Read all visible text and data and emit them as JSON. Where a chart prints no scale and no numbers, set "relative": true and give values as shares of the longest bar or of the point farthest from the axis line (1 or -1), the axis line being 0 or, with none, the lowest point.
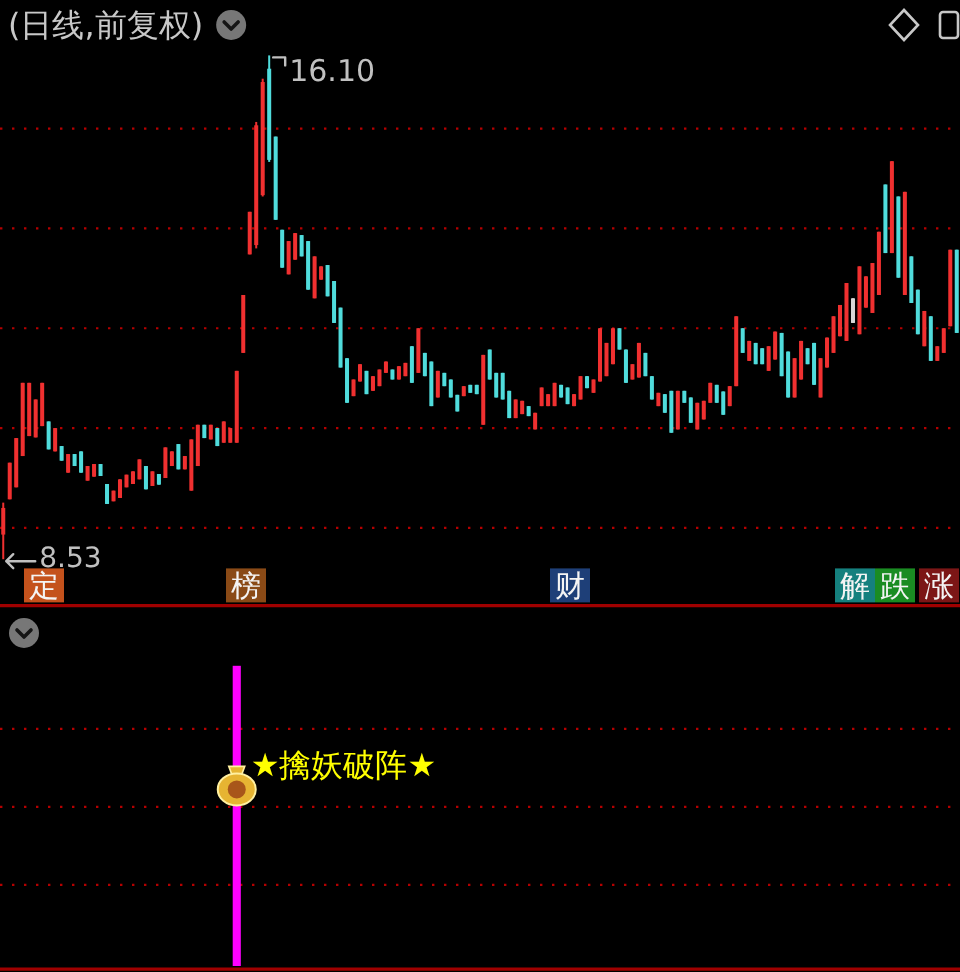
{
  "chart_data": [
    {
      "type": "candlestick",
      "title": "(日线,前复权)",
      "categories": [
        null,
        null,
        null,
        null,
        null,
        null,
        null,
        null,
        null,
        null,
        null,
        null,
        null,
        null,
        null,
        null,
        null,
        null,
        null,
        null,
        null,
        null,
        null,
        null,
        null,
        null,
        null,
        null,
        null,
        null,
        null,
        null,
        null,
        null,
        null,
        null,
        null,
        null,
        null,
        null,
        null,
        null,
        null,
        null,
        null,
        null,
        null,
        null,
        null,
        null,
        null,
        null,
        null,
        null,
        null,
        null,
        null,
        null,
        null,
        null,
        null,
        null,
        null,
        null,
        null,
        null,
        null,
        null,
        null,
        null,
        null,
        null,
        null,
        null,
        null,
        null,
        null,
        null,
        null,
        null,
        null,
        null,
        null,
        null,
        null,
        null,
        null,
        null,
        null,
        null,
        null,
        null,
        null,
        null,
        null,
        null,
        null,
        null,
        null,
        null,
        null,
        null,
        null,
        null,
        null,
        null,
        null,
        null,
        null,
        null,
        null,
        null,
        null,
        null,
        null,
        null,
        null,
        null,
        null,
        null,
        null,
        null,
        null,
        null,
        null,
        null,
        null,
        null,
        null,
        null,
        null,
        null,
        null,
        null,
        null,
        null,
        null,
        null,
        null,
        null,
        null,
        null,
        null,
        null,
        null,
        null,
        null,
        null
      ],
      "ohlc": [
        [
          8.9,
          9.38,
          8.53,
          9.3
        ],
        [
          9.43,
          9.98,
          9.43,
          9.98
        ],
        [
          9.61,
          10.35,
          9.61,
          10.35
        ],
        [
          10.08,
          11.18,
          10.08,
          11.18
        ],
        [
          10.38,
          11.18,
          10.38,
          11.18
        ],
        [
          10.36,
          10.93,
          10.36,
          10.93
        ],
        [
          10.53,
          11.18,
          10.53,
          11.18
        ],
        [
          10.6,
          10.6,
          10.18,
          10.18
        ],
        [
          10.15,
          10.5,
          10.15,
          10.5
        ],
        [
          10.23,
          10.23,
          10.01,
          10.01
        ],
        [
          9.83,
          10.11,
          9.83,
          10.11
        ],
        [
          10.11,
          10.11,
          9.93,
          9.93
        ],
        [
          10.15,
          10.15,
          9.83,
          9.83
        ],
        [
          9.71,
          9.93,
          9.71,
          9.93
        ],
        [
          9.77,
          9.96,
          9.77,
          9.96
        ],
        [
          9.96,
          9.96,
          9.78,
          9.78
        ],
        [
          9.66,
          9.66,
          9.36,
          9.36
        ],
        [
          9.4,
          9.56,
          9.4,
          9.56
        ],
        [
          9.45,
          9.73,
          9.45,
          9.73
        ],
        [
          9.61,
          9.8,
          9.61,
          9.8
        ],
        [
          9.66,
          9.85,
          9.66,
          9.85
        ],
        [
          9.73,
          10.03,
          9.73,
          10.03
        ],
        [
          9.93,
          9.93,
          9.58,
          9.58
        ],
        [
          9.63,
          9.85,
          9.63,
          9.85
        ],
        [
          9.81,
          9.81,
          9.65,
          9.65
        ],
        [
          9.75,
          10.21,
          9.75,
          10.21
        ],
        [
          9.93,
          10.15,
          9.93,
          10.15
        ],
        [
          10.26,
          10.26,
          9.88,
          9.88
        ],
        [
          9.88,
          10.08,
          9.88,
          10.08
        ],
        [
          9.56,
          10.33,
          9.56,
          10.33
        ],
        [
          9.93,
          10.55,
          9.93,
          10.55
        ],
        [
          10.55,
          10.55,
          10.35,
          10.35
        ],
        [
          10.33,
          10.55,
          10.33,
          10.55
        ],
        [
          10.5,
          10.5,
          10.23,
          10.23
        ],
        [
          10.28,
          10.6,
          10.28,
          10.6
        ],
        [
          10.28,
          10.5,
          10.28,
          10.5
        ],
        [
          10.28,
          11.36,
          10.28,
          11.36
        ],
        [
          11.63,
          12.5,
          11.63,
          12.5
        ],
        [
          13.11,
          13.75,
          13.11,
          13.75
        ],
        [
          13.25,
          15.1,
          13.2,
          15.05
        ],
        [
          14.0,
          15.75,
          13.98,
          15.7
        ],
        [
          15.9,
          16.1,
          14.5,
          14.53
        ],
        [
          14.88,
          14.88,
          13.63,
          13.63
        ],
        [
          13.48,
          13.48,
          12.91,
          12.91
        ],
        [
          12.81,
          13.31,
          12.81,
          13.31
        ],
        [
          13.03,
          13.43,
          13.03,
          13.43
        ],
        [
          13.4,
          13.4,
          13.08,
          13.08
        ],
        [
          13.31,
          13.31,
          12.58,
          12.58
        ],
        [
          12.45,
          13.08,
          12.45,
          13.08
        ],
        [
          12.73,
          12.93,
          12.73,
          12.93
        ],
        [
          12.95,
          12.95,
          12.48,
          12.48
        ],
        [
          12.71,
          12.71,
          12.08,
          12.08
        ],
        [
          12.31,
          12.31,
          11.41,
          11.41
        ],
        [
          11.55,
          11.55,
          10.88,
          10.88
        ],
        [
          10.98,
          11.23,
          10.98,
          11.23
        ],
        [
          11.2,
          11.46,
          11.2,
          11.46
        ],
        [
          11.36,
          11.36,
          11.01,
          11.01
        ],
        [
          11.06,
          11.28,
          11.06,
          11.28
        ],
        [
          11.13,
          11.38,
          11.13,
          11.38
        ],
        [
          11.33,
          11.5,
          11.33,
          11.5
        ],
        [
          11.38,
          11.38,
          11.23,
          11.23
        ],
        [
          11.23,
          11.43,
          11.23,
          11.43
        ],
        [
          11.28,
          11.48,
          11.28,
          11.48
        ],
        [
          11.73,
          11.73,
          11.18,
          11.18
        ],
        [
          11.33,
          12.0,
          11.33,
          12.0
        ],
        [
          11.63,
          11.63,
          11.28,
          11.28
        ],
        [
          11.5,
          11.5,
          10.83,
          10.83
        ],
        [
          10.96,
          11.36,
          10.96,
          11.36
        ],
        [
          11.33,
          11.33,
          11.13,
          11.13
        ],
        [
          11.23,
          11.23,
          10.96,
          10.96
        ],
        [
          11.0,
          11.0,
          10.75,
          10.75
        ],
        [
          10.98,
          11.13,
          10.98,
          11.13
        ],
        [
          11.15,
          11.15,
          11.03,
          11.03
        ],
        [
          11.15,
          11.15,
          11.01,
          11.01
        ],
        [
          10.55,
          11.6,
          10.55,
          11.6
        ],
        [
          11.68,
          11.68,
          11.23,
          11.23
        ],
        [
          11.33,
          11.33,
          10.96,
          10.96
        ],
        [
          11.33,
          11.33,
          10.93,
          10.93
        ],
        [
          11.06,
          11.06,
          10.65,
          10.65
        ],
        [
          10.65,
          10.93,
          10.65,
          10.93
        ],
        [
          10.71,
          10.91,
          10.71,
          10.91
        ],
        [
          10.83,
          10.83,
          10.68,
          10.68
        ],
        [
          10.48,
          10.73,
          10.48,
          10.73
        ],
        [
          10.83,
          11.11,
          10.83,
          11.11
        ],
        [
          10.83,
          11.01,
          10.83,
          11.01
        ],
        [
          10.83,
          11.18,
          10.83,
          11.18
        ],
        [
          11.15,
          11.15,
          10.96,
          10.96
        ],
        [
          11.11,
          11.11,
          10.86,
          10.86
        ],
        [
          10.83,
          11.01,
          10.83,
          11.01
        ],
        [
          10.93,
          11.28,
          10.93,
          11.28
        ],
        [
          11.28,
          11.28,
          11.1,
          11.1
        ],
        [
          11.03,
          11.23,
          11.03,
          11.23
        ],
        [
          11.2,
          12.0,
          11.2,
          12.0
        ],
        [
          11.28,
          11.78,
          11.28,
          11.78
        ],
        [
          11.46,
          12.0,
          11.46,
          12.0
        ],
        [
          12.0,
          12.0,
          11.68,
          11.68
        ],
        [
          11.68,
          11.68,
          11.18,
          11.18
        ],
        [
          11.23,
          11.46,
          11.23,
          11.46
        ],
        [
          11.26,
          11.78,
          11.26,
          11.78
        ],
        [
          11.63,
          11.63,
          11.28,
          11.28
        ],
        [
          11.28,
          11.28,
          10.93,
          10.93
        ],
        [
          10.83,
          11.03,
          10.83,
          11.03
        ],
        [
          11.01,
          11.01,
          10.73,
          10.73
        ],
        [
          11.06,
          11.06,
          10.43,
          10.43
        ],
        [
          10.48,
          11.06,
          10.48,
          11.06
        ],
        [
          11.06,
          11.06,
          10.88,
          10.88
        ],
        [
          10.96,
          10.96,
          10.58,
          10.58
        ],
        [
          10.48,
          10.88,
          10.48,
          10.88
        ],
        [
          10.63,
          10.91,
          10.63,
          10.91
        ],
        [
          10.88,
          11.18,
          10.88,
          11.18
        ],
        [
          11.15,
          11.15,
          10.88,
          10.88
        ],
        [
          11.05,
          11.05,
          10.7,
          10.7
        ],
        [
          10.83,
          11.13,
          10.83,
          11.13
        ],
        [
          11.13,
          12.18,
          11.13,
          12.18
        ],
        [
          12.0,
          12.0,
          11.63,
          11.63
        ],
        [
          11.51,
          11.81,
          11.51,
          11.81
        ],
        [
          11.78,
          11.78,
          11.46,
          11.46
        ],
        [
          11.7,
          11.7,
          11.46,
          11.46
        ],
        [
          11.36,
          11.73,
          11.36,
          11.73
        ],
        [
          11.53,
          11.95,
          11.53,
          11.95
        ],
        [
          11.93,
          11.93,
          11.28,
          11.28
        ],
        [
          11.65,
          11.65,
          10.96,
          10.96
        ],
        [
          10.96,
          11.55,
          10.96,
          11.55
        ],
        [
          11.23,
          11.81,
          11.23,
          11.81
        ],
        [
          11.7,
          11.7,
          11.46,
          11.46
        ],
        [
          11.78,
          11.78,
          11.15,
          11.15
        ],
        [
          10.96,
          11.55,
          10.96,
          11.55
        ],
        [
          11.41,
          11.86,
          11.41,
          11.86
        ],
        [
          11.63,
          12.18,
          11.63,
          12.18
        ],
        [
          11.88,
          12.35,
          11.88,
          12.35
        ],
        [
          11.81,
          12.68,
          11.81,
          12.68
        ],
        [
          12.45,
          12.45,
          12.08,
          12.08
        ],
        [
          11.91,
          12.93,
          11.91,
          12.93
        ],
        [
          12.31,
          12.78,
          12.31,
          12.78
        ],
        [
          12.23,
          12.98,
          12.23,
          12.98
        ],
        [
          12.5,
          13.45,
          12.5,
          13.45
        ],
        [
          14.16,
          14.16,
          13.13,
          13.13
        ],
        [
          13.13,
          14.51,
          13.13,
          14.51
        ],
        [
          13.98,
          13.98,
          12.76,
          12.76
        ],
        [
          12.5,
          14.05,
          12.5,
          14.05
        ],
        [
          13.08,
          13.08,
          12.38,
          12.38
        ],
        [
          12.58,
          12.58,
          11.91,
          11.91
        ],
        [
          11.73,
          12.26,
          11.73,
          12.26
        ],
        [
          12.18,
          12.18,
          11.51,
          11.51
        ],
        [
          11.51,
          11.73,
          11.51,
          11.73
        ],
        [
          11.63,
          12.0,
          11.63,
          12.0
        ],
        [
          12.03,
          13.18,
          12.03,
          13.18
        ],
        [
          13.18,
          13.18,
          11.93,
          11.93
        ]
      ],
      "colors": [
        "#f03030",
        "#f03030",
        "#f03030",
        "#f03030",
        "#f03030",
        "#f03030",
        "#f03030",
        "#50dcdc",
        "#f03030",
        "#50dcdc",
        "#f03030",
        "#50dcdc",
        "#50dcdc",
        "#f03030",
        "#f03030",
        "#50dcdc",
        "#50dcdc",
        "#f03030",
        "#f03030",
        "#f03030",
        "#f03030",
        "#f03030",
        "#50dcdc",
        "#f03030",
        "#50dcdc",
        "#f03030",
        "#f03030",
        "#50dcdc",
        "#f03030",
        "#f03030",
        "#f03030",
        "#50dcdc",
        "#f03030",
        "#50dcdc",
        "#f03030",
        "#f03030",
        "#f03030",
        "#f03030",
        "#f03030",
        "#f03030",
        "#f03030",
        "#50dcdc",
        "#50dcdc",
        "#50dcdc",
        "#f03030",
        "#f03030",
        "#50dcdc",
        "#50dcdc",
        "#f03030",
        "#f03030",
        "#50dcdc",
        "#50dcdc",
        "#50dcdc",
        "#50dcdc",
        "#f03030",
        "#f03030",
        "#50dcdc",
        "#f03030",
        "#f03030",
        "#f03030",
        "#50dcdc",
        "#f03030",
        "#f03030",
        "#50dcdc",
        "#f03030",
        "#50dcdc",
        "#50dcdc",
        "#f03030",
        "#50dcdc",
        "#50dcdc",
        "#50dcdc",
        "#f03030",
        "#50dcdc",
        "#50dcdc",
        "#f03030",
        "#50dcdc",
        "#50dcdc",
        "#50dcdc",
        "#50dcdc",
        "#f03030",
        "#f03030",
        "#50dcdc",
        "#f03030",
        "#f03030",
        "#f03030",
        "#f03030",
        "#50dcdc",
        "#50dcdc",
        "#f03030",
        "#f03030",
        "#50dcdc",
        "#f03030",
        "#f03030",
        "#f03030",
        "#f03030",
        "#50dcdc",
        "#50dcdc",
        "#f03030",
        "#f03030",
        "#50dcdc",
        "#50dcdc",
        "#f03030",
        "#50dcdc",
        "#50dcdc",
        "#f03030",
        "#50dcdc",
        "#50dcdc",
        "#f03030",
        "#f03030",
        "#f03030",
        "#50dcdc",
        "#50dcdc",
        "#f03030",
        "#f03030",
        "#50dcdc",
        "#f03030",
        "#50dcdc",
        "#50dcdc",
        "#f03030",
        "#f03030",
        "#50dcdc",
        "#50dcdc",
        "#f03030",
        "#f03030",
        "#50dcdc",
        "#50dcdc",
        "#f03030",
        "#f03030",
        "#f03030",
        "#f03030",
        "#f03030",
        "#d8d8d8",
        "#f03030",
        "#f03030",
        "#f03030",
        "#f03030",
        "#50dcdc",
        "#f03030",
        "#50dcdc",
        "#f03030",
        "#50dcdc",
        "#50dcdc",
        "#f03030",
        "#50dcdc",
        "#f03030",
        "#f03030",
        "#f03030",
        "#50dcdc"
      ],
      "yticks": [
        {
          "value": 9,
          "label": null
        },
        {
          "value": 10.5,
          "label": null
        },
        {
          "value": 12,
          "label": null
        },
        {
          "value": 13.5,
          "label": null
        },
        {
          "value": 15,
          "label": null
        }
      ],
      "grid": "y",
      "annotations": [
        "16.10",
        "8.53",
        "定",
        "榜",
        "财",
        "解",
        "跌",
        "涨"
      ]
    },
    {
      "type": "bar",
      "relative": true,
      "color": "#ff00ff",
      "categories": [
        null,
        null,
        null,
        null,
        null,
        null,
        null,
        null,
        null,
        null,
        null,
        null,
        null,
        null,
        null,
        null,
        null,
        null,
        null,
        null,
        null,
        null,
        null,
        null,
        null,
        null,
        null,
        null,
        null,
        null,
        null,
        null,
        null,
        null,
        null,
        null,
        null,
        null,
        null,
        null,
        null,
        null,
        null,
        null,
        null,
        null,
        null,
        null,
        null,
        null,
        null,
        null,
        null,
        null,
        null,
        null,
        null,
        null,
        null,
        null,
        null,
        null,
        null,
        null,
        null,
        null,
        null,
        null,
        null,
        null,
        null,
        null,
        null,
        null,
        null,
        null,
        null,
        null,
        null,
        null,
        null,
        null,
        null,
        null,
        null,
        null,
        null,
        null,
        null,
        null,
        null,
        null,
        null,
        null,
        null,
        null,
        null,
        null,
        null,
        null,
        null,
        null,
        null,
        null,
        null,
        null,
        null,
        null,
        null,
        null,
        null,
        null,
        null,
        null,
        null,
        null,
        null,
        null,
        null,
        null,
        null,
        null,
        null,
        null,
        null,
        null,
        null,
        null,
        null,
        null,
        null,
        null,
        null,
        null,
        null,
        null,
        null,
        null,
        null,
        null,
        null,
        null,
        null,
        null,
        null,
        null,
        null,
        null
      ],
      "values": [
        null,
        null,
        null,
        null,
        null,
        null,
        null,
        null,
        null,
        null,
        null,
        null,
        null,
        null,
        null,
        null,
        null,
        null,
        null,
        null,
        null,
        null,
        null,
        null,
        null,
        null,
        null,
        null,
        null,
        null,
        null,
        null,
        null,
        null,
        null,
        null,
        1,
        null,
        null,
        null,
        null,
        null,
        null,
        null,
        null,
        null,
        null,
        null,
        null,
        null,
        null,
        null,
        null,
        null,
        null,
        null,
        null,
        null,
        null,
        null,
        null,
        null,
        null,
        null,
        null,
        null,
        null,
        null,
        null,
        null,
        null,
        null,
        null,
        null,
        null,
        null,
        null,
        null,
        null,
        null,
        null,
        null,
        null,
        null,
        null,
        null,
        null,
        null,
        null,
        null,
        null,
        null,
        null,
        null,
        null,
        null,
        null,
        null,
        null,
        null,
        null,
        null,
        null,
        null,
        null,
        null,
        null,
        null,
        null,
        null,
        null,
        null,
        null,
        null,
        null,
        null,
        null,
        null,
        null,
        null,
        null,
        null,
        null,
        null,
        null,
        null,
        null,
        null,
        null,
        null,
        null,
        null,
        null,
        null,
        null,
        null,
        null,
        null,
        null,
        null,
        null,
        null,
        null,
        null,
        null,
        null,
        null,
        null
      ],
      "ref_lines": [
        {
          "axis": "y",
          "value": 0.79,
          "color": "#b40000",
          "line_style": "dotted"
        },
        {
          "axis": "y",
          "value": 0.53,
          "color": "#b40000",
          "line_style": "dotted"
        },
        {
          "axis": "y",
          "value": 0.27,
          "color": "#b40000",
          "line_style": "dotted"
        }
      ],
      "annotations": [
        "★擒妖破阵★"
      ]
    }
  ]
}
